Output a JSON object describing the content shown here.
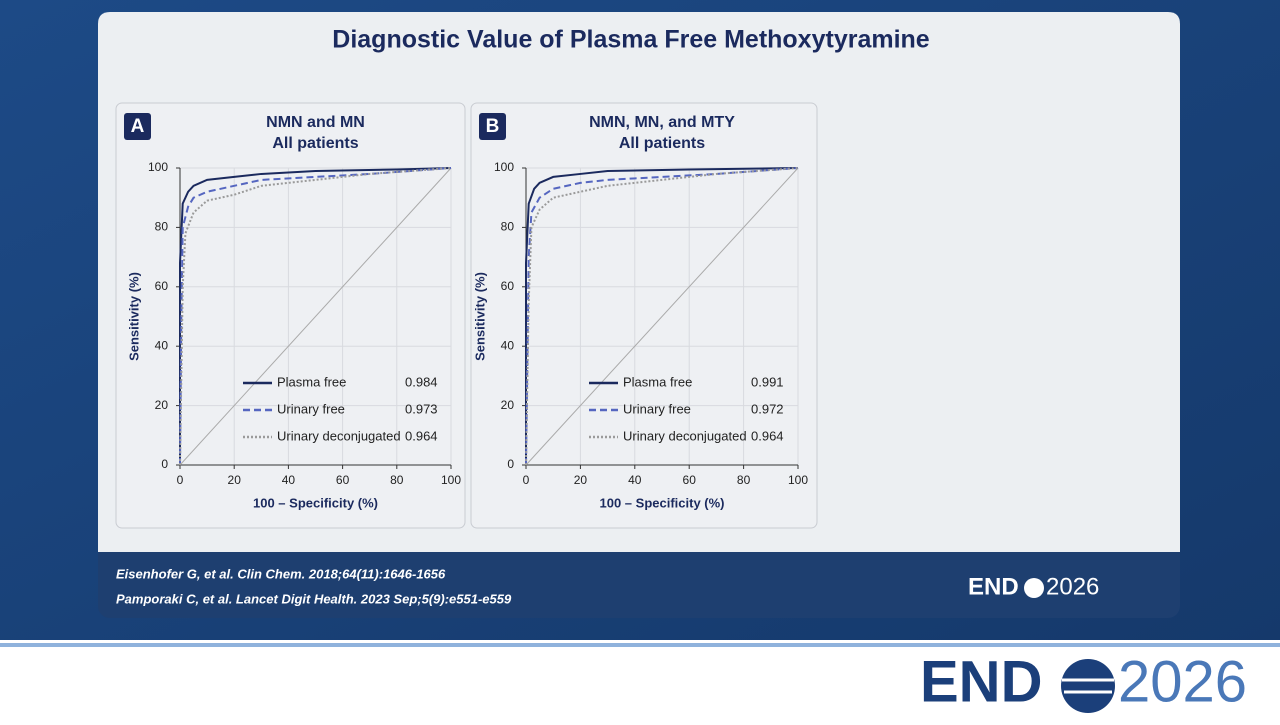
{
  "slide": {
    "title": "Diagnostic Value of Plasma Free Methoxytyramine",
    "citations": [
      "Eisenhofer G, et al.  Clin Chem. 2018;64(11):1646-1656",
      "Pamporaki C, et al. Lancet Digit Health. 2023 Sep;5(9):e551-e559"
    ],
    "logo_left": "END",
    "logo_right": "2026"
  },
  "chart_data": [
    {
      "type": "line",
      "panel": "A",
      "title": "NMN and MN",
      "subtitle": "All patients",
      "xlabel": "100 – Specificity (%)",
      "ylabel": "Sensitivity (%)",
      "xlim": [
        0,
        100
      ],
      "ylim": [
        0,
        100
      ],
      "xticks": [
        0,
        20,
        40,
        60,
        80,
        100
      ],
      "yticks": [
        0,
        20,
        40,
        60,
        80,
        100
      ],
      "grid": true,
      "series": [
        {
          "name": "Plasma free",
          "auc": 0.984,
          "color": "#1b2a5e",
          "dash": "solid",
          "x": [
            0,
            0,
            1,
            3,
            5,
            10,
            20,
            30,
            50,
            80,
            100
          ],
          "values": [
            0,
            68,
            88,
            92,
            94,
            96,
            97,
            98,
            99,
            99.5,
            100
          ]
        },
        {
          "name": "Urinary free",
          "auc": 0.973,
          "color": "#5566c0",
          "dash": "dashed",
          "x": [
            0,
            0.5,
            1,
            3,
            5,
            10,
            20,
            30,
            50,
            70,
            100
          ],
          "values": [
            0,
            50,
            80,
            87,
            90,
            92,
            94,
            96,
            97,
            98,
            100
          ]
        },
        {
          "name": "Urinary deconjugated",
          "auc": 0.964,
          "color": "#9a9a9a",
          "dash": "dotted",
          "x": [
            0,
            1,
            2,
            5,
            10,
            20,
            30,
            50,
            70,
            100
          ],
          "values": [
            0,
            60,
            78,
            85,
            89,
            91,
            94,
            96,
            98,
            100
          ]
        }
      ]
    },
    {
      "type": "line",
      "panel": "B",
      "title": "NMN, MN, and MTY",
      "subtitle": "All patients",
      "xlabel": "100 – Specificity (%)",
      "ylabel": "Sensitivity (%)",
      "xlim": [
        0,
        100
      ],
      "ylim": [
        0,
        100
      ],
      "xticks": [
        0,
        20,
        40,
        60,
        80,
        100
      ],
      "yticks": [
        0,
        20,
        40,
        60,
        80,
        100
      ],
      "grid": true,
      "series": [
        {
          "name": "Plasma free",
          "auc": 0.991,
          "color": "#1b2a5e",
          "dash": "solid",
          "x": [
            0,
            0,
            1,
            3,
            5,
            10,
            20,
            30,
            60,
            100
          ],
          "values": [
            0,
            68,
            88,
            93,
            95,
            97,
            98,
            99,
            99.5,
            100
          ]
        },
        {
          "name": "Urinary free",
          "auc": 0.972,
          "color": "#5566c0",
          "dash": "dashed",
          "x": [
            0,
            1,
            2,
            5,
            10,
            20,
            30,
            50,
            70,
            100
          ],
          "values": [
            0,
            70,
            85,
            90,
            93,
            95,
            96,
            97,
            98,
            100
          ]
        },
        {
          "name": "Urinary deconjugated",
          "auc": 0.964,
          "color": "#9a9a9a",
          "dash": "dotted",
          "x": [
            0,
            1,
            2,
            5,
            10,
            20,
            30,
            50,
            70,
            100
          ],
          "values": [
            0,
            55,
            80,
            86,
            90,
            92,
            94,
            96,
            98,
            100
          ]
        }
      ]
    }
  ]
}
